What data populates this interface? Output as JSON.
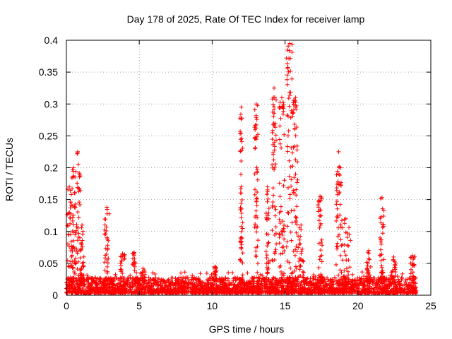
{
  "chart_data": {
    "type": "scatter",
    "title": "Day 178 of 2025, Rate Of TEC Index for receiver lamp",
    "xlabel": "GPS time / hours",
    "ylabel": "ROTI / TECUs",
    "xlim": [
      0,
      25
    ],
    "ylim": [
      0,
      0.4
    ],
    "x_ticks": [
      0,
      5,
      10,
      15,
      20,
      25
    ],
    "x_tick_labels": [
      "0",
      "5",
      "10",
      "15",
      "20",
      "25"
    ],
    "y_ticks": [
      0,
      0.05,
      0.1,
      0.15,
      0.2,
      0.25,
      0.3,
      0.35,
      0.4
    ],
    "y_tick_labels": [
      "0",
      "0.05",
      "0.1",
      "0.15",
      "0.2",
      "0.25",
      "0.3",
      "0.35",
      "0.4"
    ],
    "grid": true,
    "marker": "+",
    "series_color": "#ff0000",
    "baseline": {
      "x_range": [
        0,
        24.0
      ],
      "typical_max": 0.025,
      "note": "dense cloud of points between 0 and ~0.03 across the whole day"
    },
    "spikes": [
      {
        "t_start": 0.05,
        "t_end": 0.35,
        "max": 0.17
      },
      {
        "t_start": 0.35,
        "t_end": 0.6,
        "max": 0.2
      },
      {
        "t_start": 0.6,
        "t_end": 0.95,
        "max": 0.225
      },
      {
        "t_start": 0.95,
        "t_end": 1.2,
        "max": 0.11
      },
      {
        "t_start": 2.6,
        "t_end": 2.95,
        "max": 0.138
      },
      {
        "t_start": 3.7,
        "t_end": 4.0,
        "max": 0.065
      },
      {
        "t_start": 4.5,
        "t_end": 4.8,
        "max": 0.067
      },
      {
        "t_start": 5.1,
        "t_end": 5.4,
        "max": 0.042
      },
      {
        "t_start": 10.1,
        "t_end": 10.3,
        "max": 0.045
      },
      {
        "t_start": 11.9,
        "t_end": 12.1,
        "max": 0.295
      },
      {
        "t_start": 12.9,
        "t_end": 13.15,
        "max": 0.3
      },
      {
        "t_start": 13.7,
        "t_end": 13.9,
        "max": 0.17
      },
      {
        "t_start": 14.1,
        "t_end": 14.4,
        "max": 0.325
      },
      {
        "t_start": 14.6,
        "t_end": 14.95,
        "max": 0.31
      },
      {
        "t_start": 15.1,
        "t_end": 15.55,
        "max": 0.395
      },
      {
        "t_start": 15.55,
        "t_end": 15.9,
        "max": 0.31
      },
      {
        "t_start": 15.9,
        "t_end": 16.3,
        "max": 0.11
      },
      {
        "t_start": 17.25,
        "t_end": 17.55,
        "max": 0.155
      },
      {
        "t_start": 18.5,
        "t_end": 18.85,
        "max": 0.225
      },
      {
        "t_start": 18.85,
        "t_end": 19.5,
        "max": 0.12
      },
      {
        "t_start": 20.6,
        "t_end": 20.9,
        "max": 0.07
      },
      {
        "t_start": 21.5,
        "t_end": 21.8,
        "max": 0.153
      },
      {
        "t_start": 22.3,
        "t_end": 22.6,
        "max": 0.06
      },
      {
        "t_start": 23.6,
        "t_end": 23.9,
        "max": 0.062
      }
    ]
  }
}
